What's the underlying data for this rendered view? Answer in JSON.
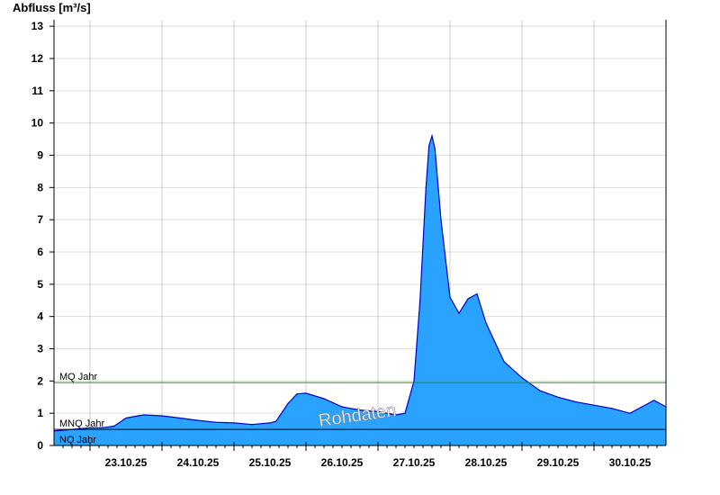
{
  "chart_data": {
    "type": "area",
    "ylabel": "Abfluss [m³/s]",
    "ylim": [
      0,
      13.2
    ],
    "y_ticks": [
      "0",
      "1",
      "2",
      "3",
      "4",
      "5",
      "6",
      "7",
      "8",
      "9",
      "10",
      "11",
      "12",
      "13"
    ],
    "xlim": [
      "22.10.25 12:00",
      "30.10.25 24:00"
    ],
    "x_ticks": [
      "23.10.25",
      "24.10.25",
      "25.10.25",
      "26.10.25",
      "27.10.25",
      "28.10.25",
      "29.10.25",
      "30.10.25"
    ],
    "grid": true,
    "series": [
      {
        "x": [
          "22.10.25 12:00",
          "22.10.25 18:00",
          "23.10.25 00:00",
          "23.10.25 04:00",
          "23.10.25 08:00",
          "23.10.25 12:00",
          "23.10.25 16:00",
          "23.10.25 18:00",
          "24.10.25 00:00",
          "24.10.25 06:00",
          "24.10.25 12:00",
          "24.10.25 18:00",
          "25.10.25 00:00",
          "25.10.25 06:00",
          "25.10.25 12:00",
          "25.10.25 14:00",
          "25.10.25 18:00",
          "25.10.25 21:00",
          "26.10.25 00:00",
          "26.10.25 06:00",
          "26.10.25 12:00",
          "26.10.25 18:00",
          "27.10.25 00:00",
          "27.10.25 06:00",
          "27.10.25 09:00",
          "27.10.25 12:00",
          "27.10.25 14:00",
          "27.10.25 16:00",
          "27.10.25 17:00",
          "27.10.25 18:00",
          "27.10.25 19:00",
          "27.10.25 21:00",
          "28.10.25 00:00",
          "28.10.25 03:00",
          "28.10.25 06:00",
          "28.10.25 09:00",
          "28.10.25 12:00",
          "28.10.25 18:00",
          "29.10.25 00:00",
          "29.10.25 06:00",
          "29.10.25 12:00",
          "29.10.25 18:00",
          "30.10.25 00:00",
          "30.10.25 06:00",
          "30.10.25 12:00",
          "30.10.25 16:00",
          "30.10.25 20:00",
          "30.10.25 24:00"
        ],
        "y": [
          0.45,
          0.5,
          0.55,
          0.55,
          0.6,
          0.85,
          0.92,
          0.95,
          0.92,
          0.85,
          0.78,
          0.72,
          0.7,
          0.65,
          0.7,
          0.75,
          1.3,
          1.6,
          1.62,
          1.45,
          1.2,
          1.1,
          1.05,
          0.95,
          1.0,
          2.0,
          4.5,
          8.0,
          9.3,
          9.6,
          9.2,
          7.0,
          4.6,
          4.1,
          4.55,
          4.7,
          3.8,
          2.6,
          2.1,
          1.7,
          1.5,
          1.35,
          1.25,
          1.15,
          1.0,
          1.2,
          1.4,
          1.2
        ]
      }
    ],
    "reference_lines": [
      {
        "label": "MQ Jahr",
        "value": 1.95,
        "color": "#2a8f2a"
      },
      {
        "label": "MNQ Jahr",
        "value": 0.5,
        "color": "#000000"
      },
      {
        "label": "NQ Jahr",
        "value": 0.0,
        "color": "#000000"
      }
    ],
    "fill_color": "#29a3ff",
    "line_color": "#0000cc",
    "watermark": "Rohdaten"
  }
}
